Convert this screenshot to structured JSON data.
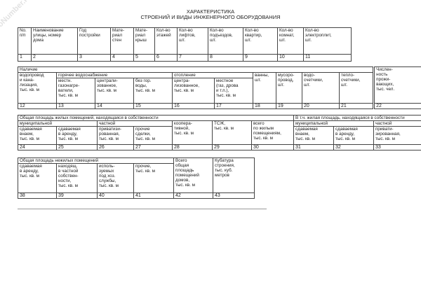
{
  "watermark": "NoNumber.ru",
  "title": {
    "line1": "ХАРАКТЕРИСТИКА",
    "line2": "СТРОЕНИЙ И ВИДЫ ИНЖЕНЕРНОГО ОБОРУДОВАНИЯ"
  },
  "t1": {
    "headers": [
      "No.\nп/п",
      "Наименование\nулицы, номер\nдома",
      "Год\nпостройки",
      "Мате-\nриал\nстен",
      "Мате-\nриал\nкрыш",
      "Кол-во\nэтажей",
      "Кол-во\nлифтов,\nшт.",
      "Кол-во\nподъездов,\nшт.",
      "Кол-во\nквартир,\nшт.",
      "Кол-во\nкомнат,\nшт.",
      "Кол-во\nэлектроплит,\nшт."
    ],
    "nums": [
      "1",
      "2",
      "3",
      "4",
      "5",
      "6",
      "7",
      "8",
      "9",
      "10",
      "11"
    ]
  },
  "t2": {
    "group": "Наличие",
    "water": "водопровод\nи кана-\nлизация,\nтыс. кв. м",
    "hot": "горячее водоснабжение",
    "heating": "отопление",
    "hot_sub": [
      "местн.\nгазонагре-\nватели,\nтыс. кв. м",
      "централи-\nзованное,\nтыс. кв. м",
      "без гор.\nводы,\nтыс. кв. м"
    ],
    "heat_sub": [
      "центра-\nлизованное,\nтыс. кв. м",
      "местное\n(газ, дрова\nи т.п.),\nтыс. кв. м"
    ],
    "other": [
      "ванны,\nшт.",
      "мусоро-\nпровод,\nшт.",
      "водо-\nсчетчики,\nшт.",
      "тепло-\nсчетчики,\nшт."
    ],
    "population": "Числен-\nность\nпрожи-\nвающих,\nтыс. чел.",
    "nums": [
      "12",
      "13",
      "14",
      "15",
      "16",
      "17",
      "18",
      "19",
      "20",
      "21",
      "22"
    ]
  },
  "t3": {
    "group": "Общая площадь жилых помещений, находящаяся в собственности",
    "group2": "В т.ч. жилая площадь, находящаяся в собственности",
    "municipal": "муниципальной",
    "private": "частной",
    "cells": [
      "сдаваемая\nвнаем,\nтыс. кв. м",
      "сдаваемая\nв аренду,\nтыс. кв. м",
      "приватизи-\nрованная,\nтыс. кв. м",
      "прочие\nсделки,\nтыс. кв. м",
      "коопера-\nтивной,\nтыс. кв. м",
      "ТСЖ,\nтыс. кв. м",
      "всего\nпо жилым\nпомещениям,\nтыс. кв. м",
      "сдаваемая\nвнаем,\nтыс. кв. м",
      "сдаваемая\nв аренду,\nтыс. кв. м",
      "привати-\nзированная,\nтыс. кв. м"
    ],
    "nums": [
      "24",
      "25",
      "26",
      "27",
      "28",
      "29",
      "30",
      "31",
      "32",
      "33"
    ]
  },
  "t4": {
    "group": "Общая площадь нежилых помещений",
    "cells": [
      "сдаваемая\nв аренду,\nтыс. кв. м",
      "находящ.\nв частной\nсобствен-\nности,\nтыс. кв. м",
      "исполь-\nзуемых\nпод хоз.\nслужбы,\nтыс. кв. м",
      "прочие,\nтыс. кв. м"
    ],
    "total": "Всего\nобщая\nплощадь\nпомещений\nдомов,\nтыс. кв. м",
    "volume": "Кубатура\nстроения,\nтыс. куб.\nметров",
    "nums": [
      "38",
      "39",
      "40",
      "41",
      "42",
      "43"
    ]
  }
}
